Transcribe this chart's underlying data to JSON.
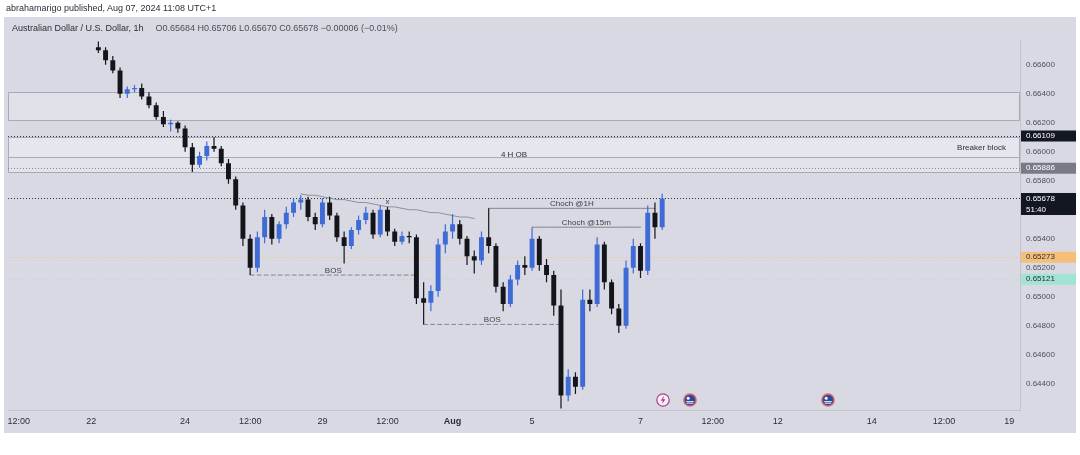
{
  "chart_data": {
    "type": "candlestick",
    "title": "Australian Dollar / U.S. Dollar, 1h",
    "subtitle": "O0.65684 H0.65706 L0.65670 C0.65678 −0.00006 (−0.01%)",
    "annotations": [
      "abrahamarigo published, Aug 07, 2024 11:08 UTC+1"
    ],
    "categories": [
      null,
      "12:00",
      null,
      null,
      null,
      null,
      null,
      null,
      null,
      null,
      null,
      "22",
      null,
      null,
      null,
      null,
      null,
      null,
      null,
      null,
      null,
      null,
      null,
      null,
      "24",
      null,
      null,
      null,
      null,
      null,
      null,
      null,
      null,
      "12:00",
      null,
      null,
      null,
      null,
      null,
      null,
      null,
      null,
      null,
      "29",
      null,
      null,
      null,
      null,
      null,
      null,
      null,
      null,
      "12:00",
      null,
      null,
      null,
      null,
      null,
      null,
      null,
      null,
      "Aug",
      null,
      null,
      null,
      null,
      null,
      null,
      null,
      null,
      null,
      null,
      "5",
      null,
      null,
      null,
      null,
      null,
      null,
      null,
      null,
      null,
      null,
      null,
      null,
      null,
      null,
      "7",
      null,
      null,
      null,
      null,
      null,
      null,
      null,
      null,
      null,
      "12:00",
      null,
      null,
      null,
      null,
      null,
      null,
      null,
      null,
      "12",
      null,
      null,
      null,
      null,
      null,
      null,
      null,
      null,
      null,
      null,
      null,
      null,
      "14",
      null,
      null,
      null,
      null,
      null,
      null,
      null,
      null,
      null,
      "12:00",
      null,
      null,
      null,
      null,
      null,
      null,
      null,
      null,
      "19",
      null
    ],
    "ohlc": [
      null,
      null,
      null,
      null,
      null,
      null,
      null,
      null,
      null,
      null,
      null,
      null,
      [
        0.6672,
        0.6676,
        0.6668,
        0.667
      ],
      [
        0.667,
        0.6672,
        0.666,
        0.6663
      ],
      [
        0.6663,
        0.6666,
        0.6654,
        0.6656
      ],
      [
        0.6656,
        0.6658,
        0.6637,
        0.664
      ],
      [
        0.664,
        0.6645,
        0.6637,
        0.6643
      ],
      [
        0.6643,
        0.6646,
        0.6641,
        0.6644
      ],
      [
        0.6644,
        0.6647,
        0.6636,
        0.6638
      ],
      [
        0.6638,
        0.6641,
        0.663,
        0.6632
      ],
      [
        0.6632,
        0.6634,
        0.6622,
        0.6624
      ],
      [
        0.6624,
        0.6628,
        0.6617,
        0.6619
      ],
      [
        0.6619,
        0.6622,
        0.6614,
        0.662
      ],
      [
        0.662,
        0.6621,
        0.6613,
        0.6616
      ],
      [
        0.6616,
        0.6618,
        0.66,
        0.6603
      ],
      [
        0.6603,
        0.6606,
        0.6586,
        0.6591
      ],
      [
        0.6591,
        0.66,
        0.6589,
        0.6597
      ],
      [
        0.6597,
        0.6607,
        0.6594,
        0.6604
      ],
      [
        0.6604,
        0.661,
        0.66,
        0.6602
      ],
      [
        0.6602,
        0.6604,
        0.659,
        0.6592
      ],
      [
        0.6592,
        0.6595,
        0.6578,
        0.6581
      ],
      [
        0.6581,
        0.6583,
        0.656,
        0.6563
      ],
      [
        0.6563,
        0.6565,
        0.6535,
        0.654
      ],
      [
        0.654,
        0.6543,
        0.6515,
        0.652
      ],
      [
        0.652,
        0.6545,
        0.6517,
        0.6541
      ],
      [
        0.6541,
        0.656,
        0.6537,
        0.6555
      ],
      [
        0.6555,
        0.6557,
        0.6536,
        0.654
      ],
      [
        0.654,
        0.6552,
        0.6537,
        0.655
      ],
      [
        0.655,
        0.6562,
        0.6547,
        0.6558
      ],
      [
        0.6558,
        0.6568,
        0.6555,
        0.6565
      ],
      [
        0.6565,
        0.657,
        0.656,
        0.6567
      ],
      [
        0.6567,
        0.6569,
        0.6552,
        0.6555
      ],
      [
        0.6555,
        0.6558,
        0.6546,
        0.655
      ],
      [
        0.655,
        0.6568,
        0.6548,
        0.6565
      ],
      [
        0.6565,
        0.6569,
        0.6553,
        0.6556
      ],
      [
        0.6556,
        0.6558,
        0.6538,
        0.6541
      ],
      [
        0.6541,
        0.6545,
        0.6523,
        0.6535
      ],
      [
        0.6535,
        0.6548,
        0.6533,
        0.6546
      ],
      [
        0.6546,
        0.6556,
        0.6543,
        0.6553
      ],
      [
        0.6553,
        0.6562,
        0.655,
        0.6558
      ],
      [
        0.6558,
        0.656,
        0.654,
        0.6543
      ],
      [
        0.6543,
        0.6563,
        0.6541,
        0.656
      ],
      [
        0.656,
        0.6562,
        0.6542,
        0.6545
      ],
      [
        0.6545,
        0.6547,
        0.6535,
        0.6538
      ],
      [
        0.6538,
        0.6545,
        0.6536,
        0.6542
      ],
      [
        0.6542,
        0.6545,
        0.6537,
        0.6541
      ],
      [
        0.6541,
        0.6543,
        0.6495,
        0.6499
      ],
      [
        0.6499,
        0.651,
        0.6481,
        0.6496
      ],
      [
        0.6496,
        0.6508,
        0.649,
        0.6504
      ],
      [
        0.6504,
        0.654,
        0.65,
        0.6536
      ],
      [
        0.6536,
        0.655,
        0.653,
        0.6545
      ],
      [
        0.6545,
        0.6557,
        0.654,
        0.655
      ],
      [
        0.655,
        0.6553,
        0.6536,
        0.654
      ],
      [
        0.654,
        0.6542,
        0.6522,
        0.6528
      ],
      [
        0.6528,
        0.6532,
        0.6516,
        0.6525
      ],
      [
        0.6525,
        0.6545,
        0.6522,
        0.6541
      ],
      [
        0.6541,
        0.6561,
        0.653,
        0.6535
      ],
      [
        0.6535,
        0.6537,
        0.6503,
        0.6507
      ],
      [
        0.6507,
        0.651,
        0.649,
        0.6495
      ],
      [
        0.6495,
        0.6515,
        0.6493,
        0.6512
      ],
      [
        0.6512,
        0.6525,
        0.6508,
        0.6522
      ],
      [
        0.6522,
        0.6528,
        0.6515,
        0.652
      ],
      [
        0.652,
        0.6548,
        0.6518,
        0.654
      ],
      [
        0.654,
        0.6542,
        0.6518,
        0.6522
      ],
      [
        0.6522,
        0.6526,
        0.651,
        0.6515
      ],
      [
        0.6515,
        0.6518,
        0.6487,
        0.6494
      ],
      [
        0.6494,
        0.6505,
        0.6423,
        0.6432
      ],
      [
        0.6432,
        0.645,
        0.6428,
        0.6445
      ],
      [
        0.6445,
        0.6448,
        0.6433,
        0.6438
      ],
      [
        0.6438,
        0.6505,
        0.6436,
        0.6498
      ],
      [
        0.6498,
        0.6505,
        0.649,
        0.6495
      ],
      [
        0.6495,
        0.6541,
        0.6493,
        0.6536
      ],
      [
        0.6536,
        0.6538,
        0.6505,
        0.651
      ],
      [
        0.651,
        0.6512,
        0.6488,
        0.6492
      ],
      [
        0.6492,
        0.6495,
        0.6475,
        0.648
      ],
      [
        0.648,
        0.6525,
        0.6478,
        0.652
      ],
      [
        0.652,
        0.654,
        0.6516,
        0.6535
      ],
      [
        0.6535,
        0.6537,
        0.6513,
        0.6518
      ],
      [
        0.6518,
        0.6563,
        0.6515,
        0.6558
      ],
      [
        0.6558,
        0.6565,
        0.654,
        0.6548
      ],
      [
        0.6548,
        0.6571,
        0.6546,
        0.65678
      ],
      null,
      null,
      null,
      null,
      null,
      null,
      null,
      null,
      null,
      null,
      null,
      null,
      null,
      null,
      null,
      null,
      null,
      null,
      null,
      null,
      null,
      null,
      null,
      null,
      null,
      null,
      null,
      null,
      null,
      null,
      null,
      null,
      null,
      null,
      null,
      null,
      null,
      null,
      null,
      null,
      null,
      null,
      null,
      null,
      null,
      null,
      null,
      null,
      null
    ],
    "colors": [
      null,
      null,
      null,
      null,
      null,
      null,
      null,
      null,
      null,
      null,
      null,
      null,
      "#14151b",
      "#14151b",
      "#14151b",
      "#14151b",
      "#3f6bd6",
      "#3f6bd6",
      "#14151b",
      "#14151b",
      "#14151b",
      "#14151b",
      "#3f6bd6",
      "#14151b",
      "#14151b",
      "#14151b",
      "#3f6bd6",
      "#3f6bd6",
      "#14151b",
      "#14151b",
      "#14151b",
      "#14151b",
      "#14151b",
      "#14151b",
      "#3f6bd6",
      "#3f6bd6",
      "#14151b",
      "#3f6bd6",
      "#3f6bd6",
      "#3f6bd6",
      "#3f6bd6",
      "#14151b",
      "#14151b",
      "#3f6bd6",
      "#14151b",
      "#14151b",
      "#14151b",
      "#3f6bd6",
      "#3f6bd6",
      "#3f6bd6",
      "#14151b",
      "#3f6bd6",
      "#14151b",
      "#14151b",
      "#3f6bd6",
      "#14151b",
      "#14151b",
      "#14151b",
      "#3f6bd6",
      "#3f6bd6",
      "#3f6bd6",
      "#3f6bd6",
      "#14151b",
      "#14151b",
      "#14151b",
      "#3f6bd6",
      "#14151b",
      "#14151b",
      "#14151b",
      "#3f6bd6",
      "#3f6bd6",
      "#14151b",
      "#3f6bd6",
      "#14151b",
      "#14151b",
      "#14151b",
      "#14151b",
      "#3f6bd6",
      "#14151b",
      "#3f6bd6",
      "#14151b",
      "#3f6bd6",
      "#14151b",
      "#14151b",
      "#14151b",
      "#3f6bd6",
      "#3f6bd6",
      "#14151b",
      "#3f6bd6",
      "#14151b",
      "#3f6bd6",
      null,
      null,
      null,
      null,
      null,
      null,
      null,
      null,
      null,
      null,
      null,
      null,
      null,
      null,
      null,
      null,
      null,
      null,
      null,
      null,
      null,
      null,
      null,
      null,
      null,
      null,
      null,
      null,
      null,
      null,
      null,
      null,
      null,
      null,
      null,
      null,
      null,
      null,
      null,
      null,
      null,
      null,
      null,
      null,
      null,
      null,
      null,
      null,
      null
    ],
    "series": [
      {
        "type": "line",
        "name": "BOS",
        "color": "#80838f",
        "line_style": "dashed",
        "values": [
          null,
          null,
          null,
          null,
          null,
          null,
          null,
          null,
          null,
          null,
          null,
          null,
          null,
          null,
          null,
          null,
          null,
          null,
          null,
          null,
          null,
          null,
          null,
          null,
          null,
          null,
          null,
          null,
          null,
          null,
          null,
          null,
          null,
          0.6515,
          0.6515,
          0.6515,
          0.6515,
          0.6515,
          0.6515,
          0.6515,
          0.6515,
          0.6515,
          0.6515,
          0.6515,
          0.6515,
          0.6515,
          0.6515,
          0.6515,
          0.6515,
          0.6515,
          0.6515,
          0.6515,
          0.6515,
          0.6515,
          0.6515,
          0.6515,
          0.6515,
          null,
          null,
          null,
          null,
          null,
          null,
          null,
          null,
          null,
          null,
          null,
          null,
          null,
          null,
          null,
          null,
          null,
          null,
          null,
          null,
          null,
          null,
          null,
          null,
          null,
          null,
          null,
          null,
          null,
          null,
          null,
          null,
          null,
          null,
          null,
          null,
          null,
          null,
          null,
          null,
          null,
          null,
          null,
          null,
          null,
          null,
          null,
          null,
          null,
          null,
          null,
          null,
          null,
          null,
          null,
          null,
          null,
          null,
          null,
          null,
          null,
          null,
          null,
          null,
          null,
          null,
          null,
          null,
          null,
          null,
          null,
          null,
          null,
          null,
          null,
          null,
          null,
          null,
          null,
          null,
          null,
          null,
          null
        ]
      },
      {
        "type": "line",
        "name": "BOS",
        "color": "#80838f",
        "line_style": "dashed",
        "values": [
          null,
          null,
          null,
          null,
          null,
          null,
          null,
          null,
          null,
          null,
          null,
          null,
          null,
          null,
          null,
          null,
          null,
          null,
          null,
          null,
          null,
          null,
          null,
          null,
          null,
          null,
          null,
          null,
          null,
          null,
          null,
          null,
          null,
          null,
          null,
          null,
          null,
          null,
          null,
          null,
          null,
          null,
          null,
          null,
          null,
          null,
          null,
          null,
          null,
          null,
          null,
          null,
          null,
          null,
          null,
          null,
          null,
          0.6481,
          0.6481,
          0.6481,
          0.6481,
          0.6481,
          0.6481,
          0.6481,
          0.6481,
          0.6481,
          0.6481,
          0.6481,
          0.6481,
          0.6481,
          0.6481,
          0.6481,
          0.6481,
          0.6481,
          0.6481,
          0.6481,
          0.6481,
          null,
          null,
          null,
          null,
          null,
          null,
          null,
          null,
          null,
          null,
          null,
          null,
          null,
          null,
          null,
          null,
          null,
          null,
          null,
          null,
          null,
          null,
          null,
          null,
          null,
          null,
          null,
          null,
          null,
          null,
          null,
          null,
          null,
          null,
          null,
          null,
          null,
          null,
          null,
          null,
          null,
          null,
          null,
          null,
          null,
          null,
          null,
          null,
          null,
          null,
          null,
          null,
          null,
          null,
          null,
          null,
          null,
          null,
          null,
          null,
          null,
          null,
          null
        ]
      },
      {
        "type": "line",
        "name": "Choch @1H",
        "color": "#80838f",
        "line_style": "solid",
        "values": [
          null,
          null,
          null,
          null,
          null,
          null,
          null,
          null,
          null,
          null,
          null,
          null,
          null,
          null,
          null,
          null,
          null,
          null,
          null,
          null,
          null,
          null,
          null,
          null,
          null,
          null,
          null,
          null,
          null,
          null,
          null,
          null,
          null,
          null,
          null,
          null,
          null,
          null,
          null,
          null,
          null,
          null,
          null,
          null,
          null,
          null,
          null,
          null,
          null,
          null,
          null,
          null,
          null,
          null,
          null,
          null,
          null,
          null,
          null,
          null,
          null,
          null,
          null,
          null,
          null,
          null,
          0.6561,
          0.6561,
          0.6561,
          0.6561,
          0.6561,
          0.6561,
          0.6561,
          0.6561,
          0.6561,
          0.6561,
          0.6561,
          0.6561,
          0.6561,
          0.6561,
          0.6561,
          0.6561,
          0.6561,
          0.6561,
          0.6561,
          0.6561,
          0.6561,
          0.6561,
          0.6561,
          0.6561,
          null,
          null,
          null,
          null,
          null,
          null,
          null,
          null,
          null,
          null,
          null,
          null,
          null,
          null,
          null,
          null,
          null,
          null,
          null,
          null,
          null,
          null,
          null,
          null,
          null,
          null,
          null,
          null,
          null,
          null,
          null,
          null,
          null,
          null,
          null,
          null,
          null,
          null,
          null,
          null,
          null,
          null,
          null,
          null,
          null,
          null,
          null,
          null,
          null,
          null
        ]
      },
      {
        "type": "line",
        "name": "Choch @15m",
        "color": "#80838f",
        "line_style": "solid",
        "values": [
          null,
          null,
          null,
          null,
          null,
          null,
          null,
          null,
          null,
          null,
          null,
          null,
          null,
          null,
          null,
          null,
          null,
          null,
          null,
          null,
          null,
          null,
          null,
          null,
          null,
          null,
          null,
          null,
          null,
          null,
          null,
          null,
          null,
          null,
          null,
          null,
          null,
          null,
          null,
          null,
          null,
          null,
          null,
          null,
          null,
          null,
          null,
          null,
          null,
          null,
          null,
          null,
          null,
          null,
          null,
          null,
          null,
          null,
          null,
          null,
          null,
          null,
          null,
          null,
          null,
          null,
          null,
          null,
          null,
          null,
          null,
          null,
          0.6548,
          0.6548,
          0.6548,
          0.6548,
          0.6548,
          0.6548,
          0.6548,
          0.6548,
          0.6548,
          0.6548,
          0.6548,
          0.6548,
          0.6548,
          0.6548,
          0.6548,
          0.6548,
          null,
          null,
          null,
          null,
          null,
          null,
          null,
          null,
          null,
          null,
          null,
          null,
          null,
          null,
          null,
          null,
          null,
          null,
          null,
          null,
          null,
          null,
          null,
          null,
          null,
          null,
          null,
          null,
          null,
          null,
          null,
          null,
          null,
          null,
          null,
          null,
          null,
          null,
          null,
          null,
          null,
          null,
          null,
          null,
          null,
          null,
          null,
          null,
          null,
          null,
          null,
          null
        ]
      },
      {
        "type": "line",
        "name": "x",
        "color": "#8d909b",
        "line_style": "solid",
        "values": [
          null,
          null,
          null,
          null,
          null,
          null,
          null,
          null,
          null,
          null,
          null,
          null,
          null,
          null,
          null,
          null,
          null,
          null,
          null,
          null,
          null,
          null,
          null,
          null,
          null,
          null,
          null,
          null,
          null,
          null,
          null,
          null,
          null,
          null,
          null,
          null,
          null,
          null,
          null,
          null,
          0.6571,
          0.657,
          0.657,
          0.6569,
          0.6568,
          0.6567,
          0.6567,
          0.6566,
          0.6565,
          0.6565,
          0.6564,
          0.6563,
          0.6562,
          0.6562,
          0.6561,
          0.656,
          0.656,
          0.6559,
          0.6558,
          0.6558,
          0.6557,
          0.6556,
          0.6555,
          0.6555,
          0.6554,
          null,
          null,
          null,
          null,
          null,
          null,
          null,
          null,
          null,
          null,
          null,
          null,
          null,
          null,
          null,
          null,
          null,
          null,
          null,
          null,
          null,
          null,
          null,
          null,
          null,
          null,
          null,
          null,
          null,
          null,
          null,
          null,
          null,
          null,
          null,
          null,
          null,
          null,
          null,
          null,
          null,
          null,
          null,
          null,
          null,
          null,
          null,
          null,
          null,
          null,
          null,
          null,
          null,
          null,
          null,
          null,
          null,
          null,
          null,
          null,
          null,
          null,
          null,
          null,
          null,
          null,
          null,
          null,
          null,
          null,
          null,
          null,
          null,
          null,
          null
        ]
      }
    ],
    "ylim": [
      0.6422,
      0.6677
    ],
    "yticks": [
      {
        "value": 0.644,
        "label": "0.64400"
      },
      {
        "value": 0.646,
        "label": "0.64600"
      },
      {
        "value": 0.648,
        "label": "0.64800"
      },
      {
        "value": 0.65,
        "label": "0.65000"
      },
      {
        "value": 0.652,
        "label": "0.65200"
      },
      {
        "value": 0.654,
        "label": "0.65400"
      },
      {
        "value": 0.658,
        "label": "0.65800"
      },
      {
        "value": 0.66,
        "label": "0.66000"
      },
      {
        "value": 0.662,
        "label": "0.66200"
      },
      {
        "value": 0.664,
        "label": "0.66400"
      },
      {
        "value": 0.666,
        "label": "0.66600"
      }
    ],
    "bands": [
      {
        "axis": "y",
        "from": 0.6622,
        "to": 0.6641,
        "color": "#e0e0e9"
      },
      {
        "axis": "y",
        "from": 0.6586,
        "to": 0.661,
        "label": "4 H OB",
        "color": "#e3e3ec"
      },
      {
        "axis": "y",
        "from": 0.6596,
        "to": 0.661,
        "label": "Breaker block",
        "color": "#e6e6ee"
      }
    ],
    "ref_lines": [
      {
        "axis": "y",
        "value": 0.66109,
        "label": "0.66109",
        "color": "#131722",
        "line_style": "dotted"
      },
      {
        "axis": "y",
        "value": 0.65886,
        "label": "0.65886",
        "color": "#787b86",
        "line_style": "dotted"
      },
      {
        "axis": "y",
        "value": 0.65678,
        "label": "0.65678\n51:40",
        "color": "#131722",
        "line_style": "dotted"
      },
      {
        "axis": "y",
        "value": 0.65273,
        "label": "0.65273",
        "color": "#f5bf7a",
        "line_style": "dotted"
      },
      {
        "axis": "y",
        "value": 0.65121,
        "label": "0.65121",
        "color": "#a3e3d3",
        "line_style": "dotted"
      }
    ]
  }
}
